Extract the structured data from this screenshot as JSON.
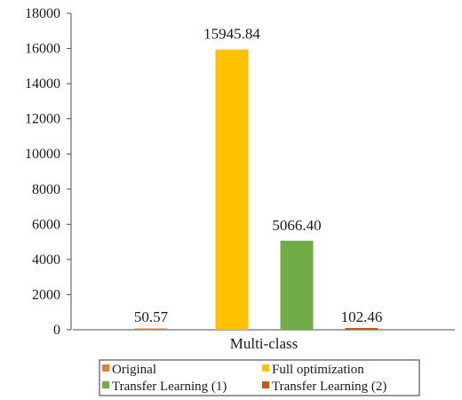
{
  "chart_data": {
    "type": "bar",
    "categories": [
      "Multi-class"
    ],
    "series": [
      {
        "name": "Original",
        "values": [
          50.57
        ],
        "label": "50.57",
        "color": "#ED7D31"
      },
      {
        "name": "Full optimization",
        "values": [
          15945.84
        ],
        "label": "15945.84",
        "color": "#FFC000"
      },
      {
        "name": "Transfer Learning (1)",
        "values": [
          5066.4
        ],
        "label": "5066.40",
        "color": "#70AD47"
      },
      {
        "name": "Transfer Learning (2)",
        "values": [
          102.46
        ],
        "label": "102.46",
        "color": "#C55A11"
      }
    ],
    "ylim": [
      0,
      18000
    ],
    "yticks": [
      0,
      2000,
      4000,
      6000,
      8000,
      10000,
      12000,
      14000,
      16000,
      18000
    ],
    "ytick_labels": [
      "0",
      "2000",
      "4000",
      "6000",
      "8000",
      "10000",
      "12000",
      "14000",
      "16000",
      "18000"
    ],
    "legend_position": "bottom",
    "grid": false
  }
}
